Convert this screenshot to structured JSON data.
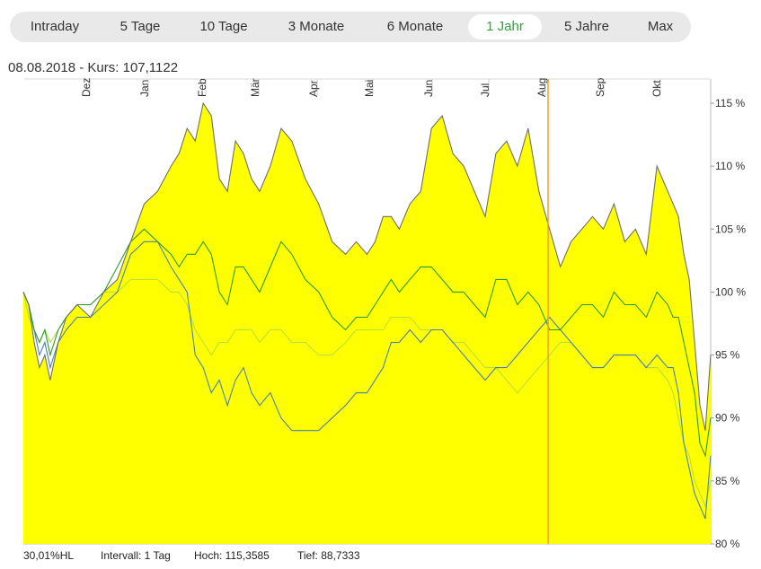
{
  "tabs": [
    {
      "label": "Intraday",
      "active": false
    },
    {
      "label": "5 Tage",
      "active": false
    },
    {
      "label": "10 Tage",
      "active": false
    },
    {
      "label": "3 Monate",
      "active": false
    },
    {
      "label": "6 Monate",
      "active": false
    },
    {
      "label": "1 Jahr",
      "active": true
    },
    {
      "label": "5 Jahre",
      "active": false
    },
    {
      "label": "Max",
      "active": false
    }
  ],
  "header": {
    "date": "08.08.2018",
    "separator": "-",
    "price_label": "Kurs:",
    "price_value": "107,1122"
  },
  "footer": {
    "hl": "30,01%HL",
    "interval": "Intervall: 1 Tag",
    "high": "Hoch: 115,3585",
    "low": "Tief: 88,7333"
  },
  "colors": {
    "area_fill": "#ffff00",
    "area_line": "#6e6e6e",
    "series_dark_green": "#2e9a2e",
    "series_blue": "#4a7fb0",
    "series_light_green": "#b8e03a",
    "marker": "#f0a030",
    "active_tab": "#2ea33a"
  },
  "chart_data": {
    "type": "line",
    "x_months": [
      "Dez",
      "Jan",
      "Feb",
      "Mär",
      "Apr",
      "Mai",
      "Jun",
      "Jul",
      "Aug",
      "Sep",
      "Okt"
    ],
    "y_ticks": [
      "115 %",
      "110 %",
      "105 %",
      "100 %",
      "95 %",
      "90 %",
      "85 %",
      "80 %"
    ],
    "ylim": [
      80,
      116
    ],
    "x_index": [
      0,
      2,
      4,
      6,
      8,
      10,
      13,
      16,
      20,
      25,
      30,
      35,
      40,
      45,
      50,
      55,
      58,
      61,
      64,
      67,
      70,
      73,
      76,
      79,
      82,
      85,
      88,
      92,
      96,
      100,
      105,
      110,
      115,
      120,
      124,
      128,
      131,
      134,
      137,
      140,
      144,
      148,
      152,
      156,
      160,
      164,
      168,
      172,
      176,
      180,
      184,
      188,
      192,
      196,
      200,
      204,
      208,
      212,
      216,
      220,
      224,
      228,
      232,
      236,
      240,
      242,
      244,
      246,
      248,
      250,
      252,
      254,
      256
    ],
    "series": [
      {
        "values": [
          100,
          99,
          96,
          94,
          95,
          93,
          96,
          98,
          99,
          98,
          100,
          101,
          104,
          107,
          108,
          110,
          111,
          113,
          112,
          115,
          114,
          109,
          108,
          112,
          111,
          109,
          108,
          110,
          113,
          112,
          109,
          107,
          104,
          103,
          104,
          103,
          104,
          106,
          106,
          105,
          107,
          108,
          113,
          114,
          111,
          110,
          108,
          106,
          111,
          112,
          110,
          113,
          108,
          105,
          102,
          104,
          105,
          106,
          105,
          107,
          104,
          105,
          103,
          110,
          108,
          107,
          106,
          103,
          101,
          96,
          91,
          89,
          95
        ]
      },
      {
        "values": [
          100,
          99,
          97,
          96,
          97,
          95,
          97,
          98,
          99,
          99,
          100,
          102,
          104,
          105,
          104,
          103,
          102,
          103,
          103,
          104,
          103,
          100,
          99,
          102,
          102,
          101,
          100,
          102,
          104,
          103,
          101,
          100,
          98,
          97,
          98,
          98,
          99,
          100,
          101,
          100,
          101,
          102,
          102,
          101,
          100,
          100,
          99,
          98,
          101,
          101,
          99,
          100,
          99,
          97,
          97,
          98,
          99,
          99,
          98,
          100,
          99,
          99,
          98,
          100,
          99,
          98,
          98,
          96,
          94,
          92,
          88,
          87,
          90
        ]
      },
      {
        "values": [
          100,
          99,
          97,
          95,
          96,
          94,
          96,
          97,
          98,
          98,
          99,
          100,
          103,
          104,
          104,
          102,
          101,
          100,
          95,
          94,
          92,
          93,
          91,
          93,
          94,
          92,
          91,
          92,
          90,
          89,
          89,
          89,
          90,
          91,
          92,
          92,
          93,
          94,
          96,
          96,
          97,
          96,
          97,
          97,
          96,
          95,
          94,
          93,
          94,
          94,
          95,
          96,
          97,
          98,
          97,
          96,
          95,
          94,
          94,
          95,
          95,
          95,
          94,
          95,
          94,
          94,
          92,
          88,
          86,
          84,
          83,
          82,
          87
        ]
      },
      {
        "values": [
          100,
          98,
          97,
          96,
          97,
          96,
          97,
          98,
          99,
          99,
          100,
          100,
          101,
          101,
          101,
          100,
          100,
          99,
          97,
          96,
          95,
          96,
          96,
          97,
          97,
          97,
          96,
          97,
          97,
          96,
          96,
          95,
          95,
          96,
          97,
          97,
          97,
          97,
          98,
          98,
          98,
          97,
          97,
          97,
          96,
          96,
          95,
          94,
          94,
          93,
          92,
          93,
          94,
          95,
          96,
          96,
          95,
          94,
          94,
          95,
          95,
          95,
          94,
          94,
          93,
          92,
          90,
          88,
          87,
          85,
          84,
          83,
          85
        ]
      }
    ],
    "marker": {
      "type": "vertical_line",
      "x_date": "08.08.2018"
    }
  }
}
